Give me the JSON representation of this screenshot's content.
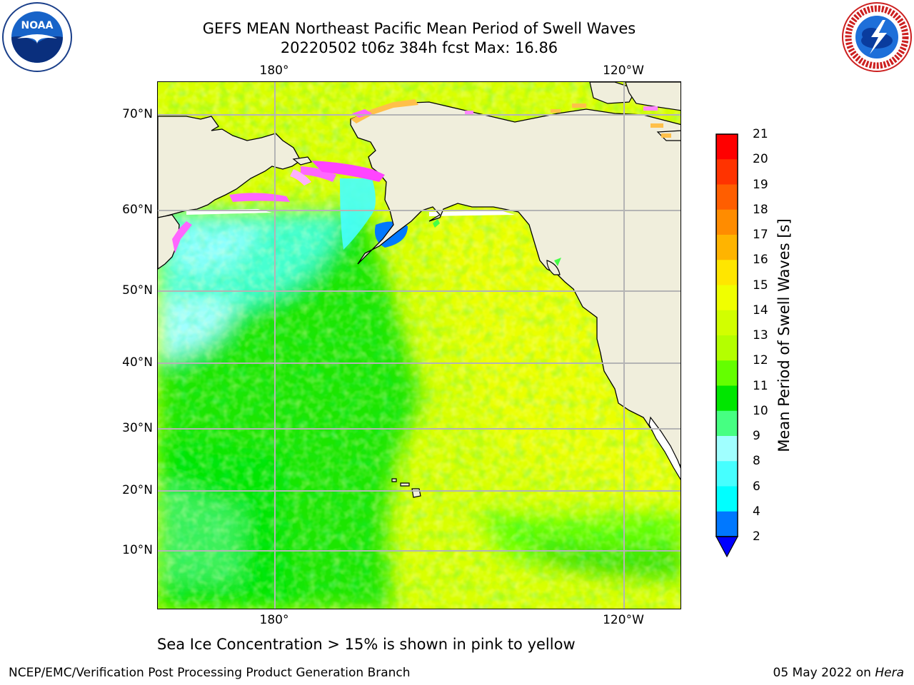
{
  "header": {
    "title_line1": "GEFS MEAN Northeast Pacific Mean Period of Swell Waves",
    "title_line2": "20220502 t06z 384h fcst   Max: 16.86"
  },
  "map": {
    "lon_labels_top": [
      "180°",
      "120°W"
    ],
    "lon_labels_bottom": [
      "180°",
      "120°W"
    ],
    "lat_labels": [
      "70°N",
      "60°N",
      "50°N",
      "40°N",
      "30°N",
      "20°N",
      "10°N"
    ],
    "colors": {
      "land": "#f0eedc",
      "coast": "#000000",
      "grid": "#b4b4b4",
      "ice_pink": "#ff66ff",
      "ice_orange": "#ffc04a"
    }
  },
  "colorbar": {
    "label": "Mean Period of Swell Waves [s]",
    "ticks": [
      "21",
      "20",
      "19",
      "18",
      "17",
      "16",
      "15",
      "14",
      "13",
      "12",
      "11",
      "10",
      "9",
      "8",
      "6",
      "4",
      "2"
    ],
    "colors": [
      "#ff0000",
      "#ff3300",
      "#ff5e00",
      "#ff8c00",
      "#ffb400",
      "#ffe600",
      "#f0ff00",
      "#d2ff00",
      "#b4ff00",
      "#64ff00",
      "#00e600",
      "#46ff82",
      "#a0ffff",
      "#46ffff",
      "#00ffff",
      "#0078ff"
    ],
    "under_color": "#0000ff"
  },
  "footer": {
    "note": "Sea Ice Concentration > 15% is shown in pink to yellow",
    "credit": "NCEP/EMC/Verification Post Processing Product Generation Branch",
    "date": "05 May 2022 on",
    "machine": "Hera"
  },
  "logos": {
    "noaa_text": "NOAA",
    "noaa_icon": "noaa-seagull-emblem",
    "nws_icon": "nws-storm-emblem"
  }
}
